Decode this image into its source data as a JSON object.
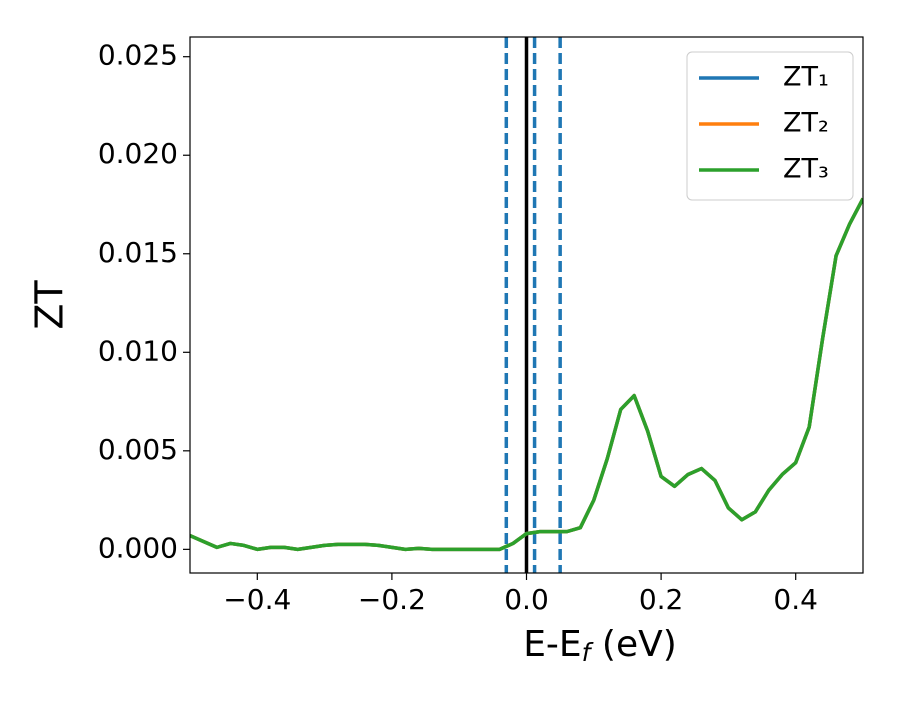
{
  "chart_data": {
    "type": "line",
    "xlabel": "E-E",
    "xlabel_sub": "f",
    "xlabel_unit": " (eV)",
    "ylabel": "ZT",
    "x": [
      -0.5,
      -0.48,
      -0.46,
      -0.44,
      -0.42,
      -0.4,
      -0.38,
      -0.36,
      -0.34,
      -0.32,
      -0.3,
      -0.28,
      -0.26,
      -0.24,
      -0.22,
      -0.2,
      -0.18,
      -0.16,
      -0.14,
      -0.12,
      -0.1,
      -0.08,
      -0.06,
      -0.04,
      -0.02,
      0,
      0.02,
      0.04,
      0.06,
      0.08,
      0.1,
      0.12,
      0.14,
      0.16,
      0.18,
      0.2,
      0.22,
      0.24,
      0.26,
      0.28,
      0.3,
      0.32,
      0.34,
      0.36,
      0.38,
      0.4,
      0.42,
      0.44,
      0.46,
      0.48,
      0.5
    ],
    "series": [
      {
        "name": "ZT₁",
        "color": "#1f77b4",
        "values": [
          0.0007,
          0.0004,
          0.0001,
          0.0003,
          0.0002,
          0.0,
          0.0001,
          0.0001,
          0.0,
          0.0001,
          0.0002,
          0.00025,
          0.00025,
          0.00025,
          0.0002,
          0.0001,
          0.0,
          5e-05,
          0.0,
          0.0,
          0.0,
          0.0,
          0.0,
          0.0,
          0.0003,
          0.0008,
          0.0009,
          0.0009,
          0.0009,
          0.0011,
          0.0025,
          0.0046,
          0.0071,
          0.0078,
          0.006,
          0.0037,
          0.0032,
          0.0038,
          0.0041,
          0.0035,
          0.0021,
          0.0015,
          0.0019,
          0.003,
          0.0038,
          0.0044,
          0.0062,
          0.0107,
          0.0149,
          0.0165,
          0.0178
        ]
      },
      {
        "name": "ZT₂",
        "color": "#ff7f0e",
        "values": [
          0.0007,
          0.0004,
          0.0001,
          0.0003,
          0.0002,
          0.0,
          0.0001,
          0.0001,
          0.0,
          0.0001,
          0.0002,
          0.00025,
          0.00025,
          0.00025,
          0.0002,
          0.0001,
          0.0,
          5e-05,
          0.0,
          0.0,
          0.0,
          0.0,
          0.0,
          0.0,
          0.0003,
          0.0008,
          0.0009,
          0.0009,
          0.0009,
          0.0011,
          0.0025,
          0.0046,
          0.0071,
          0.0078,
          0.006,
          0.0037,
          0.0032,
          0.0038,
          0.0041,
          0.0035,
          0.0021,
          0.0015,
          0.0019,
          0.003,
          0.0038,
          0.0044,
          0.0062,
          0.0107,
          0.0149,
          0.0165,
          0.0178
        ]
      },
      {
        "name": "ZT₃",
        "color": "#2ca02c",
        "values": [
          0.0007,
          0.0004,
          0.0001,
          0.0003,
          0.0002,
          0.0,
          0.0001,
          0.0001,
          0.0,
          0.0001,
          0.0002,
          0.00025,
          0.00025,
          0.00025,
          0.0002,
          0.0001,
          0.0,
          5e-05,
          0.0,
          0.0,
          0.0,
          0.0,
          0.0,
          0.0,
          0.0003,
          0.0008,
          0.0009,
          0.0009,
          0.0009,
          0.0011,
          0.0025,
          0.0046,
          0.0071,
          0.0078,
          0.006,
          0.0037,
          0.0032,
          0.0038,
          0.0041,
          0.0035,
          0.0021,
          0.0015,
          0.0019,
          0.003,
          0.0038,
          0.0044,
          0.0062,
          0.0107,
          0.0149,
          0.0165,
          0.0178
        ]
      }
    ],
    "vlines": [
      {
        "x": -0.03,
        "color": "#1f77b4",
        "style": "dashed"
      },
      {
        "x": 0.012,
        "color": "#1f77b4",
        "style": "dashed"
      },
      {
        "x": 0.05,
        "color": "#1f77b4",
        "style": "dashed"
      },
      {
        "x": 0,
        "color": "#000000",
        "style": "solid"
      }
    ],
    "xlim": [
      -0.5,
      0.5
    ],
    "xticks": [
      {
        "value": -0.4,
        "label": "−0.4"
      },
      {
        "value": -0.2,
        "label": "−0.2"
      },
      {
        "value": 0,
        "label": "0.0"
      },
      0.2,
      0.4
    ],
    "ylim": [
      -0.0012,
      0.026
    ],
    "yticks": [
      {
        "value": 0,
        "label": "0.000"
      },
      {
        "value": 0.005,
        "label": "0.005"
      },
      {
        "value": 0.01,
        "label": "0.010"
      },
      {
        "value": 0.015,
        "label": "0.015"
      },
      {
        "value": 0.02,
        "label": "0.020"
      },
      {
        "value": 0.025,
        "label": "0.025"
      }
    ],
    "legend": "upper right",
    "grid": false
  }
}
